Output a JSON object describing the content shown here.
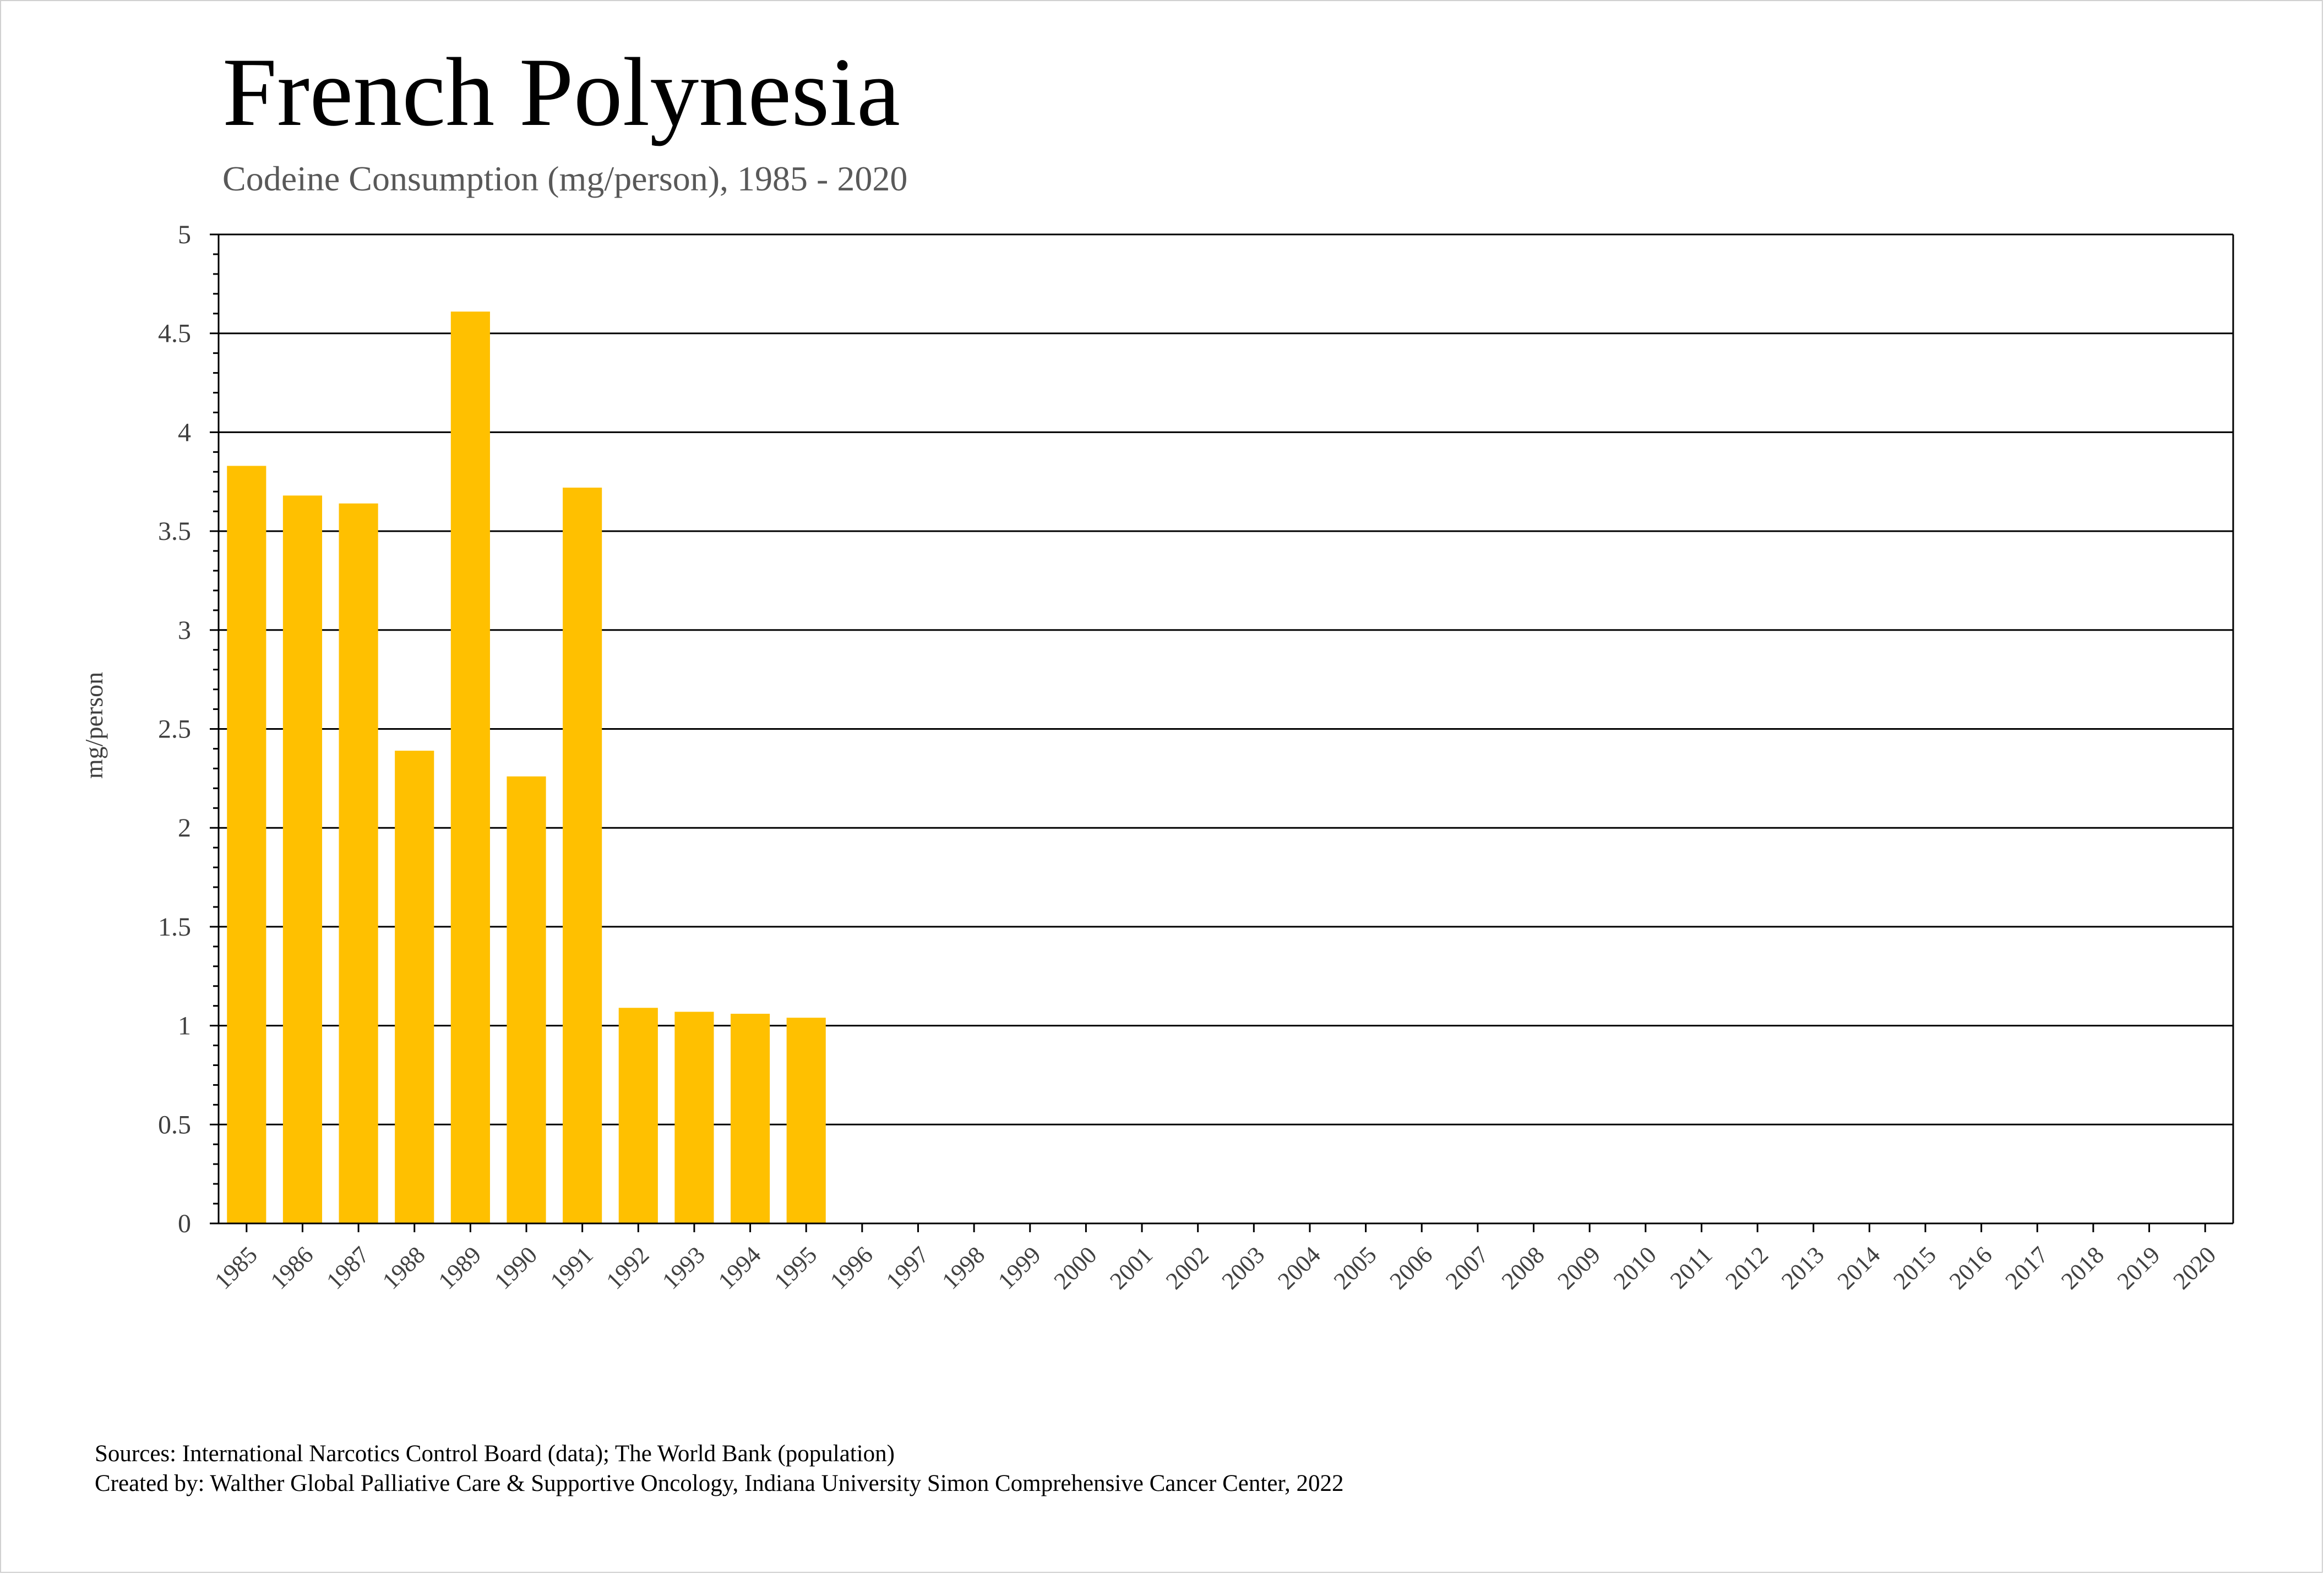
{
  "title": "French Polynesia",
  "subtitle": "Codeine Consumption (mg/person), 1985 - 2020",
  "footer": {
    "sources": "Sources: International Narcotics Control Board (data); The World Bank (population)",
    "created_by": "Created by: Walther Global Palliative Care & Supportive Oncology, Indiana University Simon Comprehensive Cancer Center, 2022"
  },
  "chart_data": {
    "type": "bar",
    "ylabel": "mg/person",
    "xlabel": "",
    "ylim": [
      0,
      5
    ],
    "yticks": [
      "0",
      "0.5",
      "1",
      "1.5",
      "2",
      "2.5",
      "3",
      "3.5",
      "4",
      "4.5",
      "5"
    ],
    "grid": true,
    "bar_color": "#FFC000",
    "categories": [
      "1985",
      "1986",
      "1987",
      "1988",
      "1989",
      "1990",
      "1991",
      "1992",
      "1993",
      "1994",
      "1995",
      "1996",
      "1997",
      "1998",
      "1999",
      "2000",
      "2001",
      "2002",
      "2003",
      "2004",
      "2005",
      "2006",
      "2007",
      "2008",
      "2009",
      "2010",
      "2011",
      "2012",
      "2013",
      "2014",
      "2015",
      "2016",
      "2017",
      "2018",
      "2019",
      "2020"
    ],
    "values": [
      3.83,
      3.68,
      3.64,
      2.39,
      4.61,
      2.26,
      3.72,
      1.09,
      1.07,
      1.06,
      1.04,
      null,
      null,
      null,
      null,
      null,
      null,
      null,
      null,
      null,
      null,
      null,
      null,
      null,
      null,
      null,
      null,
      null,
      null,
      null,
      null,
      null,
      null,
      null,
      null,
      null
    ]
  }
}
